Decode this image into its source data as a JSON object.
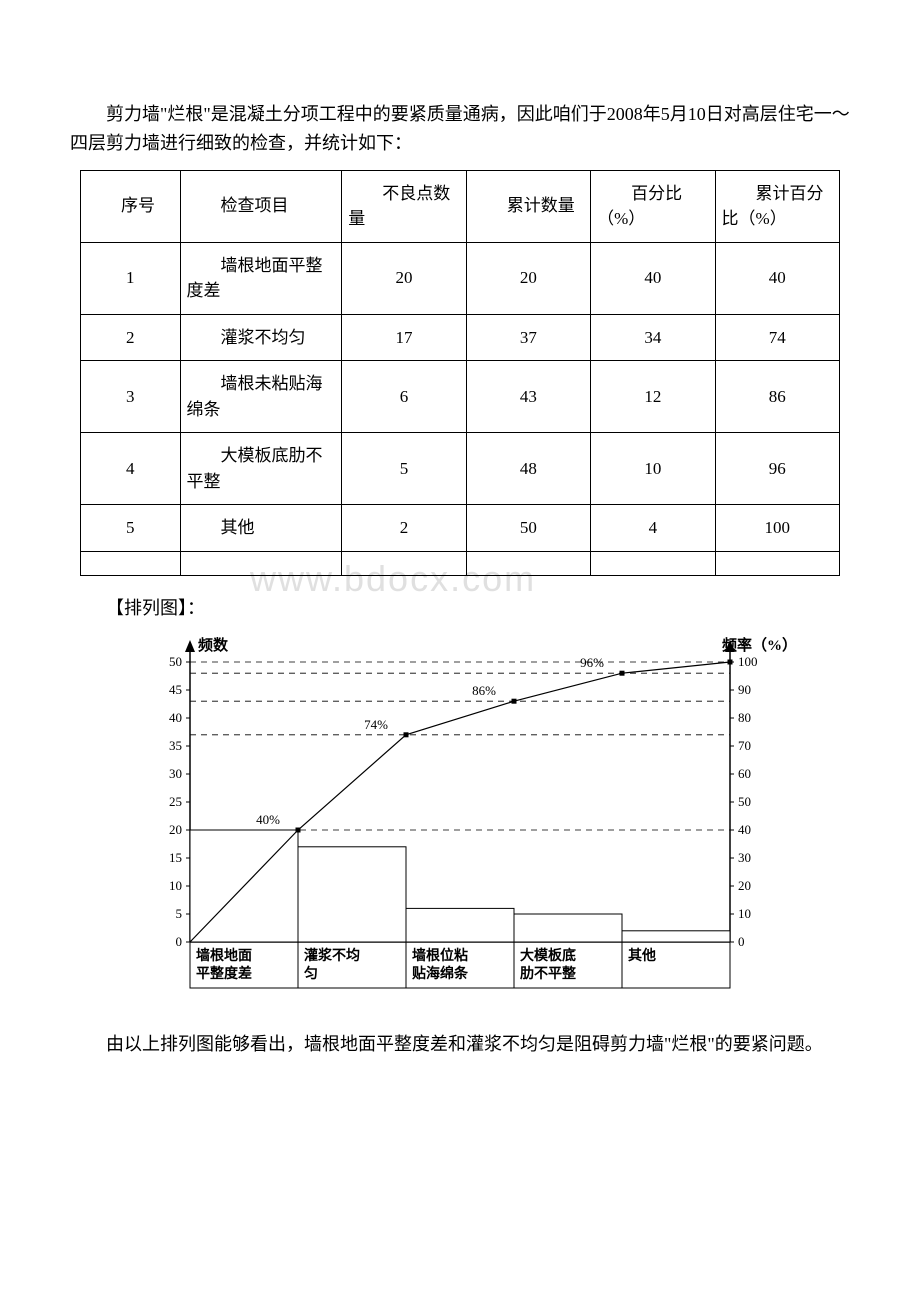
{
  "intro": "剪力墙\"烂根\"是混凝土分项工程中的要紧质量通病，因此咱们于2008年5月10日对高层住宅一～四层剪力墙进行细致的检查，并统计如下：",
  "table": {
    "headers": [
      "序号",
      "检查项目",
      "不良点数量",
      "累计数量",
      "百分比（%）",
      "累计百分比（%）"
    ],
    "rows": [
      {
        "seq": "1",
        "item": "墙根地面平整度差",
        "defect": "20",
        "cum": "20",
        "pct": "40",
        "cumpct": "40"
      },
      {
        "seq": "2",
        "item": "灌浆不均匀",
        "defect": "17",
        "cum": "37",
        "pct": "34",
        "cumpct": "74"
      },
      {
        "seq": "3",
        "item": "墙根未粘贴海绵条",
        "defect": "6",
        "cum": "43",
        "pct": "12",
        "cumpct": "86"
      },
      {
        "seq": "4",
        "item": "大模板底肋不平整",
        "defect": "5",
        "cum": "48",
        "pct": "10",
        "cumpct": "96"
      },
      {
        "seq": "5",
        "item": "其他",
        "defect": "2",
        "cum": "50",
        "pct": "4",
        "cumpct": "100"
      }
    ]
  },
  "chart_title": "【排列图】：",
  "chart": {
    "type": "pareto",
    "left_axis_label": "频数",
    "right_axis_label": "频率（%）",
    "left_ticks": [
      0,
      5,
      10,
      15,
      20,
      25,
      30,
      35,
      40,
      45,
      50
    ],
    "right_ticks": [
      0,
      10,
      20,
      30,
      40,
      50,
      60,
      70,
      80,
      90,
      100
    ],
    "categories": [
      "墙根地面平整度差",
      "灌浆不均匀",
      "墙根位粘贴海绵条",
      "大模板底肋不平整",
      "其他"
    ],
    "bar_values": [
      20,
      17,
      6,
      5,
      2
    ],
    "cum_pct": [
      40,
      74,
      86,
      96,
      100
    ],
    "pct_labels": [
      "40%",
      "74%",
      "86%",
      "96%",
      ""
    ],
    "bar_color": "#ffffff",
    "bar_border": "#000000",
    "line_color": "#000000",
    "dash_color": "#000000",
    "background": "#ffffff",
    "axis_color": "#000000",
    "ylim_left": [
      0,
      50
    ],
    "ylim_right": [
      0,
      100
    ],
    "line_width": 1
  },
  "conclusion": "由以上排列图能够看出，墙根地面平整度差和灌浆不均匀是阻碍剪力墙\"烂根\"的要紧问题。",
  "watermark": "www.bdocx.com"
}
